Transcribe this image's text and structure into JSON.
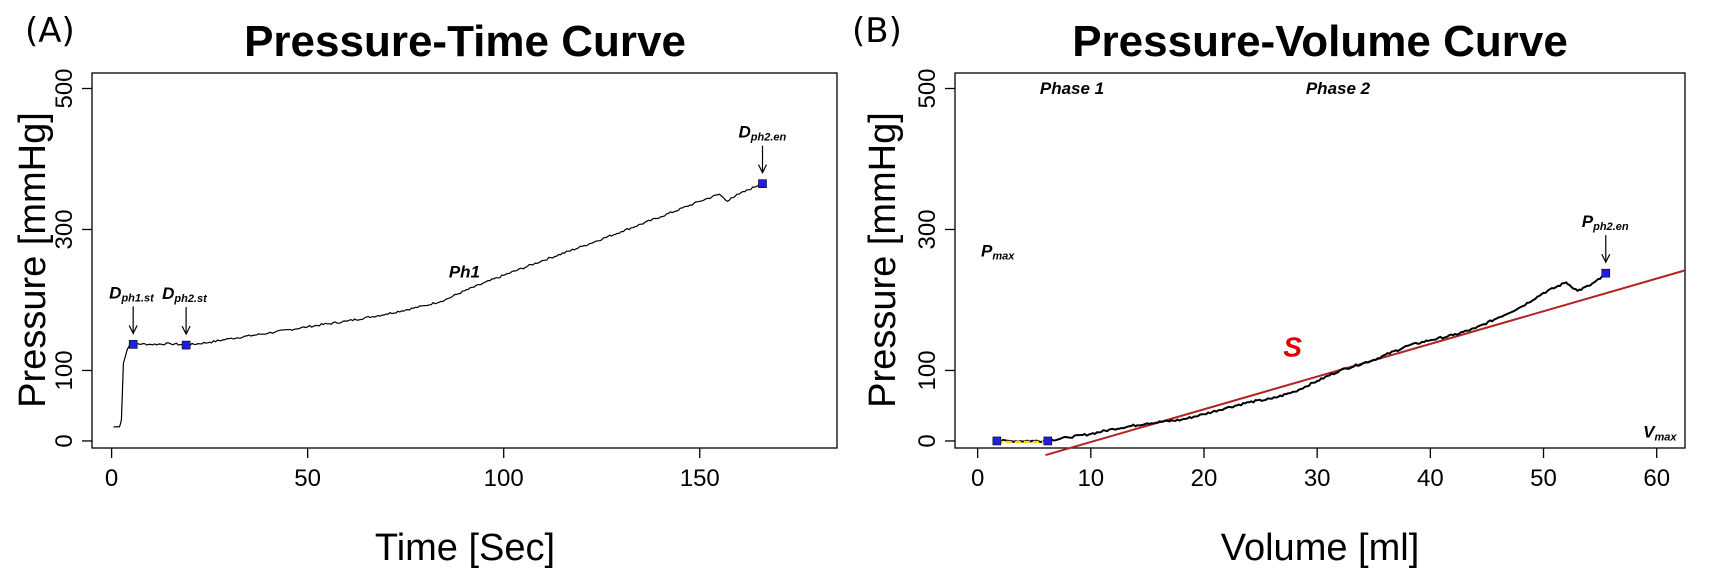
{
  "chart_data": [
    {
      "type": "line",
      "panel": "(A)",
      "title": "Pressure-Time Curve",
      "xlabel": "Time [Sec]",
      "ylabel": "Pressure [mmHg]",
      "xlim": [
        -5,
        185
      ],
      "ylim": [
        -10,
        522
      ],
      "xticks": [
        0,
        50,
        100,
        150
      ],
      "yticks": [
        0,
        100,
        300,
        500
      ],
      "grid": false,
      "x": [
        0.5,
        2,
        2.5,
        3,
        4,
        5,
        5.5,
        10,
        15,
        19,
        25,
        30,
        40,
        50,
        60,
        70,
        80,
        85,
        90,
        100,
        110,
        120,
        130,
        140,
        150,
        155,
        157,
        158,
        160,
        165,
        166
      ],
      "y": [
        20,
        20,
        30,
        110,
        130,
        140,
        138,
        137,
        138,
        136,
        140,
        145,
        153,
        162,
        170,
        180,
        192,
        200,
        213,
        235,
        256,
        276,
        297,
        318,
        340,
        350,
        340,
        345,
        350,
        363,
        365
      ],
      "markers": [
        {
          "label": "D",
          "sub": "ph1.st",
          "x": 5.5,
          "y": 137
        },
        {
          "label": "D",
          "sub": "ph2.st",
          "x": 19,
          "y": 136
        },
        {
          "label": "D",
          "sub": "ph2.en",
          "x": 166,
          "y": 365
        }
      ],
      "annotations": [
        {
          "text": "Ph1",
          "x": 86,
          "y": 232
        }
      ],
      "series_color": "#000000",
      "marker_color": "#1f1fe0"
    },
    {
      "type": "line",
      "panel": "(B)",
      "title": "Pressure-Volume Curve",
      "xlabel": "Volume [ml]",
      "ylabel": "Pressure [mmHg]",
      "xlim": [
        -2,
        62.5
      ],
      "ylim": [
        -10,
        522
      ],
      "xticks": [
        0,
        10,
        20,
        30,
        40,
        50,
        60
      ],
      "yticks": [
        0,
        100,
        300,
        500
      ],
      "grid": false,
      "x": [
        1.5,
        3,
        5,
        6,
        8,
        10,
        12,
        15,
        18,
        20,
        22,
        24,
        26,
        28,
        30,
        32,
        35,
        38,
        40,
        42,
        44,
        46,
        48,
        50,
        52,
        53,
        54,
        55,
        55.5
      ],
      "y": [
        0,
        0,
        0,
        0,
        5,
        10,
        17,
        25,
        30,
        38,
        47,
        55,
        60,
        70,
        85,
        100,
        115,
        135,
        143,
        150,
        160,
        175,
        190,
        210,
        225,
        213,
        220,
        230,
        238
      ],
      "points": [
        {
          "label": "P",
          "sub": "ph2.en",
          "x": 55.5,
          "y": 238
        },
        {
          "x": 1.7,
          "y": 0
        },
        {
          "x": 6.2,
          "y": 0
        }
      ],
      "fit_line": {
        "name": "S",
        "x": [
          6,
          62.5
        ],
        "y": [
          -20,
          242
        ]
      },
      "annotations": [
        {
          "text": "Phase 1",
          "x": 5.5,
          "y": 492
        },
        {
          "text": "Phase 2",
          "x": 29,
          "y": 492
        },
        {
          "text": "P",
          "sub": "max",
          "x": 0.3,
          "y": 262
        },
        {
          "text": "V",
          "sub": "max",
          "x": 58.8,
          "y": 5
        },
        {
          "text": "S",
          "x": 27,
          "y": 120
        }
      ],
      "series_color": "#000000",
      "fit_color": "#b22222",
      "marker_color": "#1f1fe0",
      "phase1_color": "#ffd700"
    }
  ]
}
